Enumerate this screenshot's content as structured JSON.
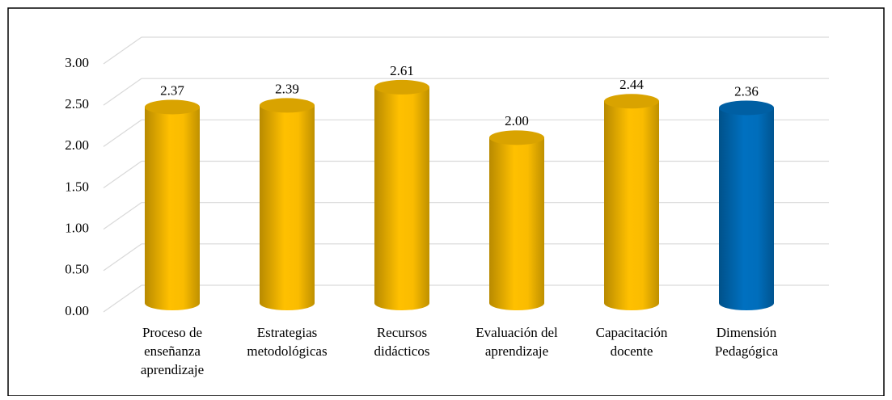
{
  "chart_data": {
    "type": "cylinder-bar",
    "categories": [
      [
        "Proceso de",
        "enseñanza",
        "aprendizaje"
      ],
      [
        "Estrategias",
        "metodológicas"
      ],
      [
        "Recursos",
        "didácticos"
      ],
      [
        "Evaluación del",
        "aprendizaje"
      ],
      [
        "Capacitación",
        "docente"
      ],
      [
        "Dimensión",
        "Pedagógica"
      ]
    ],
    "values": [
      2.37,
      2.39,
      2.61,
      2.0,
      2.44,
      2.36
    ],
    "value_labels": [
      "2.37",
      "2.39",
      "2.61",
      "2.00",
      "2.44",
      "2.36"
    ],
    "colors": [
      "#ffc000",
      "#ffc000",
      "#ffc000",
      "#ffc000",
      "#ffc000",
      "#0070c0"
    ],
    "ylim": [
      0,
      3
    ],
    "yticks": [
      {
        "value": 0,
        "label": "0.00"
      },
      {
        "value": 0.5,
        "label": "0.50"
      },
      {
        "value": 1,
        "label": "1.00"
      },
      {
        "value": 1.5,
        "label": "1.50"
      },
      {
        "value": 2,
        "label": "2.00"
      },
      {
        "value": 2.5,
        "label": "2.50"
      },
      {
        "value": 3,
        "label": "3.00"
      }
    ],
    "grid": true
  }
}
